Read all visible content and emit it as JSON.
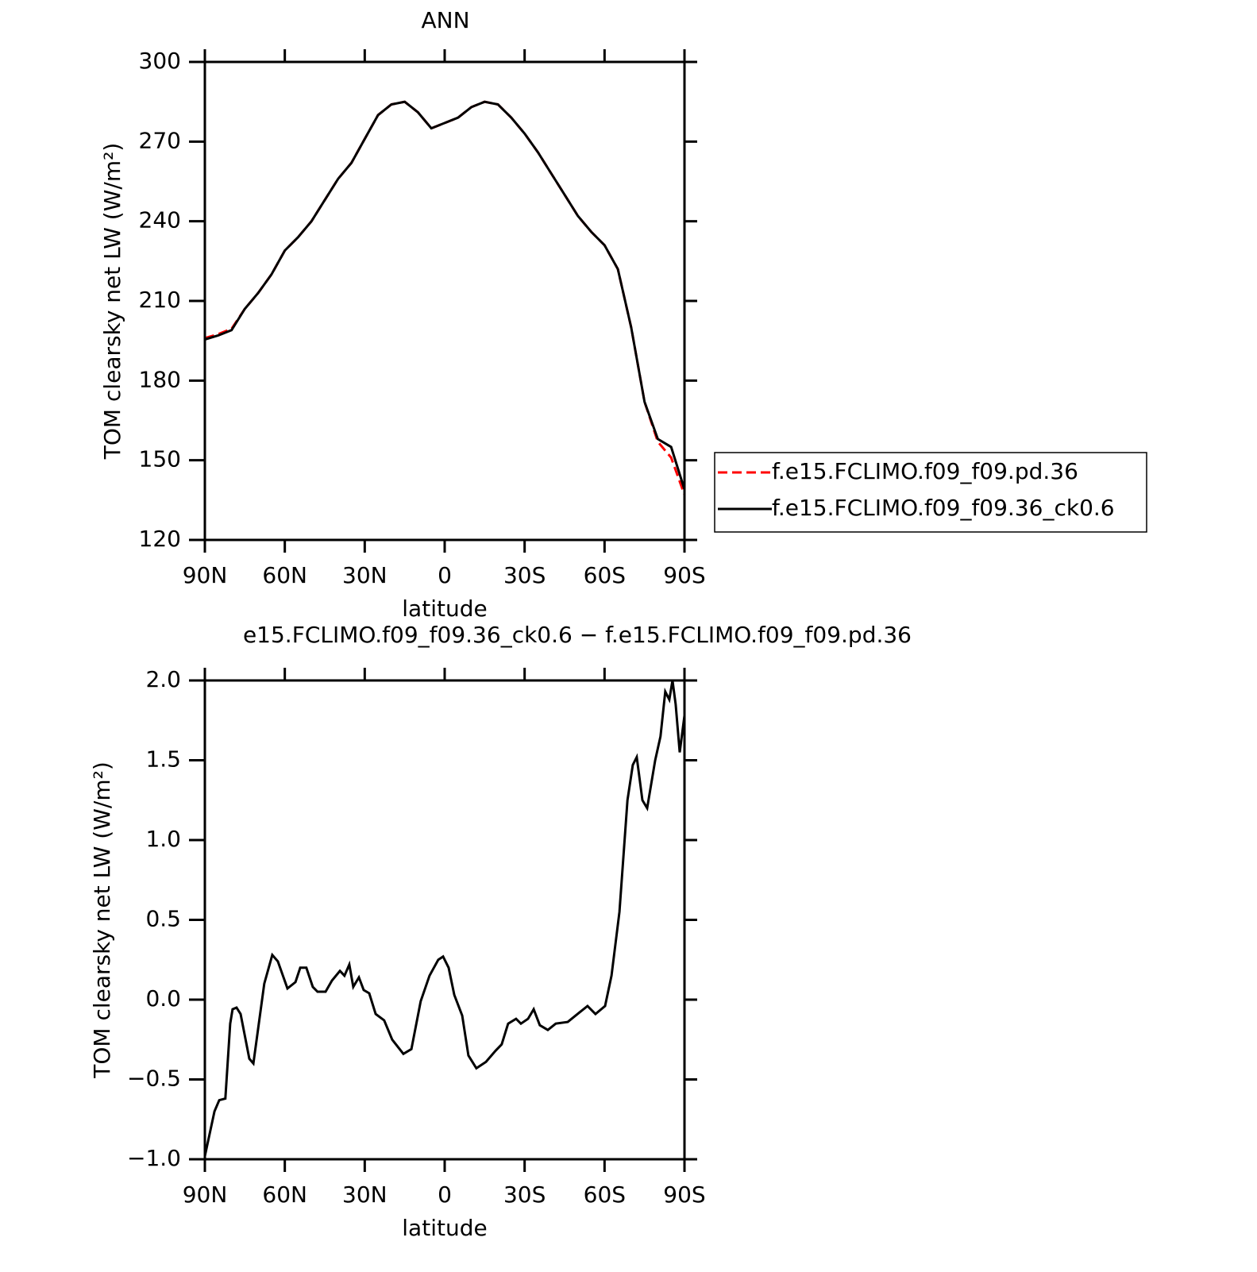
{
  "chart_data": [
    {
      "type": "line",
      "title": "ANN",
      "x_label": "latitude",
      "y_label": "TOM clearsky net LW (W/m²)",
      "x": [
        90,
        85,
        80,
        75,
        70,
        65,
        60,
        55,
        50,
        45,
        40,
        35,
        30,
        25,
        20,
        15,
        10,
        5,
        0,
        -5,
        -10,
        -15,
        -20,
        -25,
        -30,
        -35,
        -40,
        -45,
        -50,
        -55,
        -60,
        -65,
        -70,
        -75,
        -80,
        -85,
        -90
      ],
      "series": [
        {
          "name": "f.e15.FCLIMO.f09_f09.pd.36",
          "color": "#ff0000",
          "dash": true,
          "values": [
            196,
            197.5,
            199.5,
            207,
            213,
            220,
            229,
            234,
            240,
            248,
            256,
            262,
            271,
            280,
            284,
            285,
            281,
            275,
            277,
            279,
            283,
            285,
            284,
            279,
            273,
            266,
            258,
            250,
            242,
            236,
            231,
            222,
            200,
            172,
            157,
            151,
            137
          ]
        },
        {
          "name": "f.e15.FCLIMO.f09_f09.36_ck0.6",
          "color": "#000000",
          "dash": false,
          "values": [
            195.5,
            197,
            199,
            207,
            213,
            220,
            229,
            234,
            240,
            248,
            256,
            262,
            271,
            280,
            284,
            285,
            281,
            275,
            277,
            279,
            283,
            285,
            284,
            279,
            273,
            266,
            258,
            250,
            242,
            236,
            231,
            222,
            200,
            172,
            158,
            155,
            139
          ]
        }
      ],
      "xlim": [
        90,
        -90
      ],
      "xticks": [
        {
          "value": 90,
          "label": "90N"
        },
        {
          "value": 60,
          "label": "60N"
        },
        {
          "value": 30,
          "label": "30N"
        },
        0,
        {
          "value": -30,
          "label": "30S"
        },
        {
          "value": -60,
          "label": "60S"
        },
        {
          "value": -90,
          "label": "90S"
        }
      ],
      "ylim": [
        120,
        300
      ],
      "yticks": [
        120,
        150,
        180,
        210,
        240,
        270,
        300
      ],
      "legend": "right"
    },
    {
      "type": "line",
      "title": "e15.FCLIMO.f09_f09.36_ck0.6 − f.e15.FCLIMO.f09_f09.pd.36",
      "x_label": "latitude",
      "y_label": "TOM clearsky net LW (W/m²)",
      "x": [
        90,
        86.4,
        84.6,
        82.3,
        80.5,
        79.6,
        78.1,
        76.6,
        73.3,
        71.8,
        67.7,
        64.7,
        62.6,
        59,
        56,
        54.2,
        51.9,
        49.5,
        47.7,
        44.7,
        42.3,
        39.3,
        37.6,
        35.8,
        34.3,
        32.2,
        30.4,
        28.3,
        25.9,
        22.7,
        19.7,
        15.5,
        12.5,
        9,
        5.7,
        2.4,
        0.6,
        -1.5,
        -3.6,
        -6.6,
        -8.9,
        -11.9,
        -15.5,
        -19.1,
        -21.4,
        -23.8,
        -26.8,
        -28.6,
        -31.3,
        -33.4,
        -35.7,
        -38.7,
        -41.7,
        -46.2,
        -50.6,
        -53.6,
        -56.6,
        -60.2,
        -62.6,
        -65.6,
        -68.6,
        -70.6,
        -72.1,
        -74.2,
        -76,
        -79,
        -81,
        -82.8,
        -84.3,
        -85.5,
        -86.7,
        -88.2,
        -90
      ],
      "series": [
        {
          "name": null,
          "color": "#000000",
          "dash": false,
          "values": [
            -0.98,
            -0.7,
            -0.63,
            -0.62,
            -0.15,
            -0.06,
            -0.05,
            -0.09,
            -0.37,
            -0.4,
            0.1,
            0.28,
            0.24,
            0.07,
            0.11,
            0.2,
            0.2,
            0.08,
            0.05,
            0.05,
            0.12,
            0.18,
            0.15,
            0.22,
            0.08,
            0.14,
            0.06,
            0.04,
            -0.09,
            -0.13,
            -0.25,
            -0.34,
            -0.31,
            -0.01,
            0.15,
            0.25,
            0.27,
            0.2,
            0.03,
            -0.1,
            -0.35,
            -0.43,
            -0.39,
            -0.32,
            -0.28,
            -0.15,
            -0.12,
            -0.15,
            -0.12,
            -0.06,
            -0.16,
            -0.19,
            -0.15,
            -0.14,
            -0.08,
            -0.04,
            -0.09,
            -0.04,
            0.15,
            0.55,
            1.25,
            1.47,
            1.52,
            1.25,
            1.2,
            1.5,
            1.65,
            1.93,
            1.88,
            2.0,
            1.85,
            1.55,
            1.78
          ]
        }
      ],
      "xlim": [
        90,
        -90
      ],
      "xticks": [
        {
          "value": 90,
          "label": "90N"
        },
        {
          "value": 60,
          "label": "60N"
        },
        {
          "value": 30,
          "label": "30N"
        },
        0,
        {
          "value": -30,
          "label": "30S"
        },
        {
          "value": -60,
          "label": "60S"
        },
        {
          "value": -90,
          "label": "90S"
        }
      ],
      "ylim": [
        -1,
        2
      ],
      "yticks": [
        {
          "value": -1,
          "label": "−1.0"
        },
        {
          "value": -0.5,
          "label": "−0.5"
        },
        {
          "value": 0,
          "label": "0.0"
        },
        0.5,
        {
          "value": 1,
          "label": "1.0"
        },
        1.5,
        {
          "value": 2,
          "label": "2.0"
        }
      ]
    }
  ]
}
